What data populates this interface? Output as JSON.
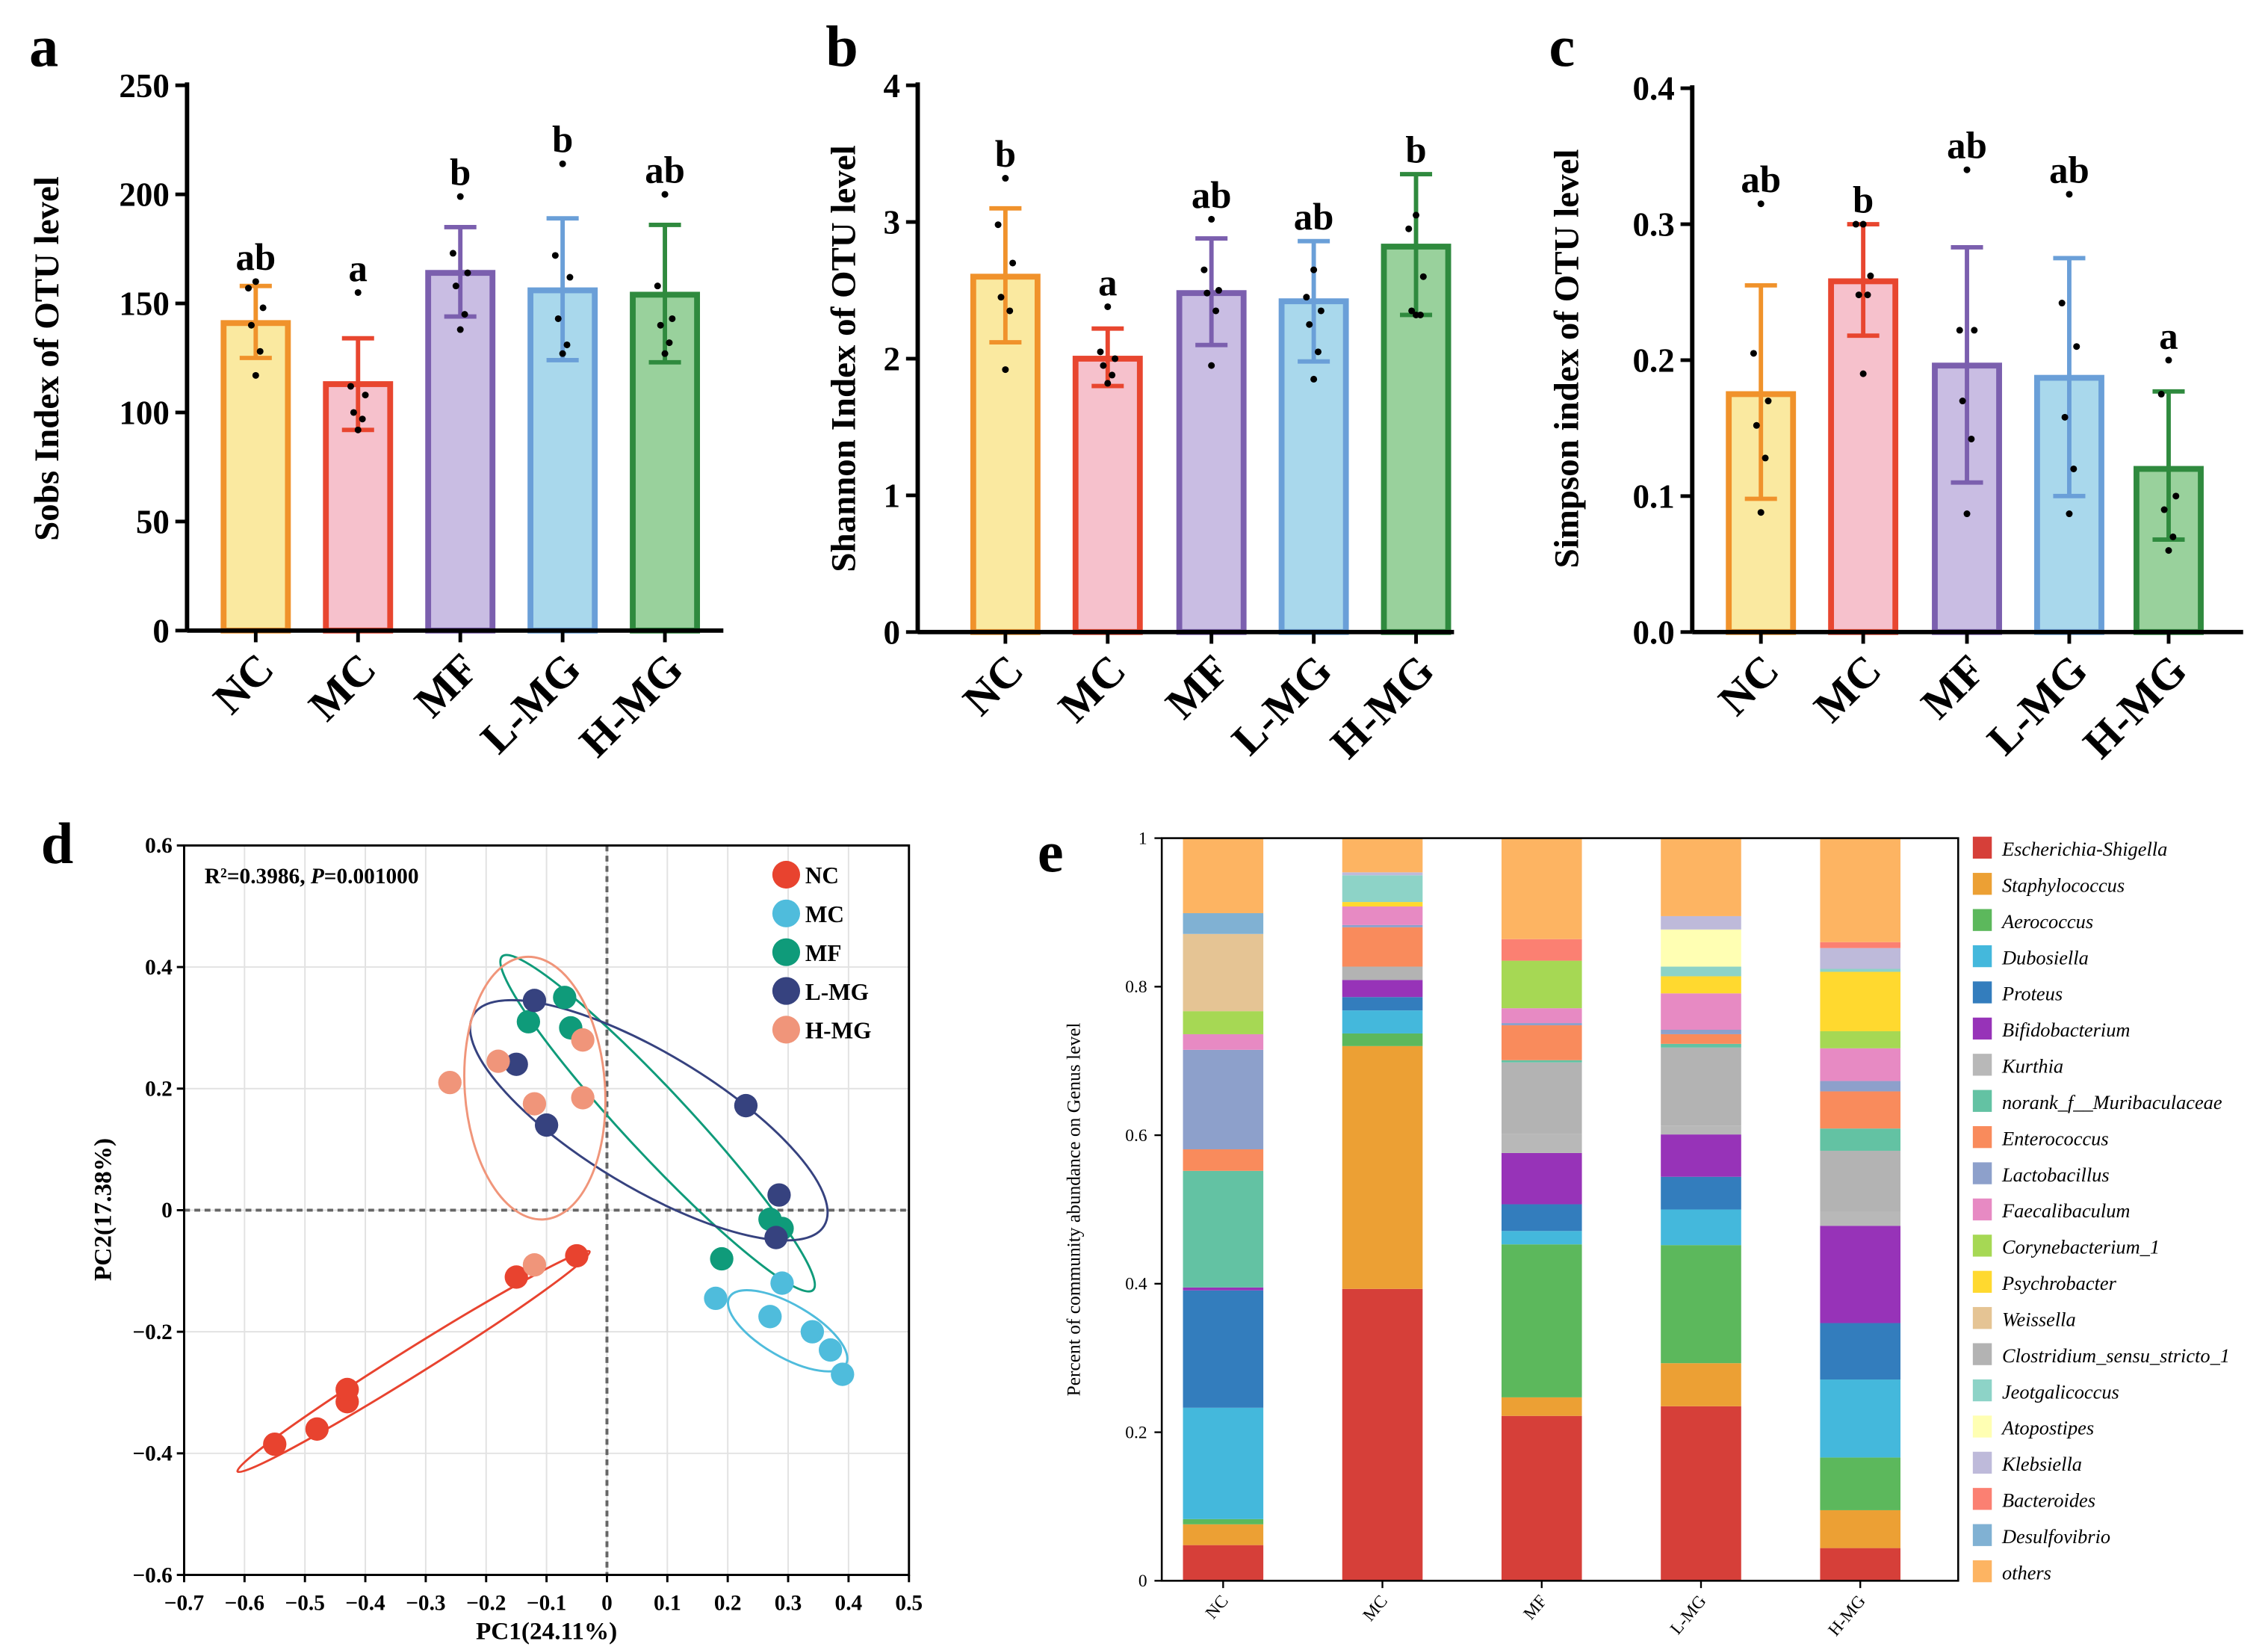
{
  "chart_data": [
    {
      "panel": "a",
      "type": "bar",
      "ylabel": "Sobs Index of OTU level",
      "ylim": [
        0,
        250
      ],
      "yticks": [
        "0",
        "50",
        "100",
        "150",
        "200",
        "250"
      ],
      "ytick_values": [
        0,
        50,
        100,
        150,
        200,
        250
      ],
      "categories": [
        "NC",
        "MC",
        "MF",
        "L-MG",
        "H-MG"
      ],
      "values": [
        141,
        113,
        164,
        156,
        154
      ],
      "error_low": [
        125,
        92,
        144,
        124,
        123
      ],
      "error_high": [
        158,
        134,
        185,
        189,
        186
      ],
      "points": [
        [
          160,
          157,
          148,
          140,
          128,
          117
        ],
        [
          155,
          112,
          108,
          100,
          97,
          92
        ],
        [
          199,
          173,
          164,
          158,
          145,
          138
        ],
        [
          214,
          172,
          162,
          143,
          131,
          127
        ],
        [
          200,
          158,
          143,
          140,
          132,
          127
        ]
      ],
      "significance": [
        "ab",
        "a",
        "b",
        "b",
        "ab"
      ]
    },
    {
      "panel": "b",
      "type": "bar",
      "ylabel": "Shannon Index of OTU level",
      "ylim": [
        0,
        4
      ],
      "yticks": [
        "0",
        "1",
        "2",
        "3",
        "4"
      ],
      "ytick_values": [
        0,
        1,
        2,
        3,
        4
      ],
      "categories": [
        "NC",
        "MC",
        "MF",
        "L-MG",
        "H-MG"
      ],
      "values": [
        2.6,
        2.0,
        2.48,
        2.42,
        2.82
      ],
      "error_low": [
        2.12,
        1.8,
        2.1,
        1.98,
        2.32
      ],
      "error_high": [
        3.1,
        2.22,
        2.88,
        2.86,
        3.35
      ],
      "points": [
        [
          3.32,
          2.98,
          2.7,
          2.45,
          2.35,
          1.92
        ],
        [
          2.38,
          2.05,
          2.0,
          1.95,
          1.88,
          1.82
        ],
        [
          3.02,
          2.65,
          2.5,
          2.48,
          2.35,
          1.95
        ],
        [
          2.65,
          2.45,
          2.35,
          2.25,
          2.05,
          1.85
        ],
        [
          3.05,
          2.95,
          2.6,
          2.35,
          2.32,
          2.32
        ]
      ],
      "significance": [
        "b",
        "a",
        "ab",
        "ab",
        "b"
      ]
    },
    {
      "panel": "c",
      "type": "bar",
      "ylabel": "Simpson index of OTU level",
      "ylim": [
        0,
        0.4
      ],
      "yticks": [
        "0.0",
        "0.1",
        "0.2",
        "0.3",
        "0.4"
      ],
      "ytick_values": [
        0,
        0.1,
        0.2,
        0.3,
        0.4
      ],
      "categories": [
        "NC",
        "MC",
        "MF",
        "L-MG",
        "H-MG"
      ],
      "values": [
        0.175,
        0.258,
        0.196,
        0.187,
        0.12
      ],
      "error_low": [
        0.098,
        0.218,
        0.11,
        0.1,
        0.068
      ],
      "error_high": [
        0.255,
        0.3,
        0.283,
        0.275,
        0.177
      ],
      "points": [
        [
          0.315,
          0.205,
          0.17,
          0.152,
          0.128,
          0.088
        ],
        [
          0.3,
          0.3,
          0.262,
          0.248,
          0.248,
          0.19
        ],
        [
          0.34,
          0.222,
          0.222,
          0.17,
          0.142,
          0.087
        ],
        [
          0.322,
          0.242,
          0.21,
          0.158,
          0.12,
          0.087
        ],
        [
          0.2,
          0.175,
          0.1,
          0.09,
          0.07,
          0.06
        ]
      ],
      "significance": [
        "ab",
        "b",
        "ab",
        "ab",
        "a"
      ]
    },
    {
      "panel": "d",
      "type": "scatter",
      "xlabel": "PC1(24.11%)",
      "ylabel": "PC2(17.38%)",
      "xlim": [
        -0.7,
        0.5
      ],
      "ylim": [
        -0.6,
        0.6
      ],
      "xticks": [
        "−0.7",
        "−0.6",
        "−0.5",
        "−0.4",
        "−0.3",
        "−0.2",
        "−0.1",
        "0",
        "0.1",
        "0.2",
        "0.3",
        "0.4",
        "0.5"
      ],
      "xtick_values": [
        -0.7,
        -0.6,
        -0.5,
        -0.4,
        -0.3,
        -0.2,
        -0.1,
        0,
        0.1,
        0.2,
        0.3,
        0.4,
        0.5
      ],
      "yticks": [
        "0.6",
        "0.4",
        "0.2",
        "0",
        "−0.2",
        "−0.4",
        "−0.6"
      ],
      "ytick_values": [
        0.6,
        0.4,
        0.2,
        0,
        -0.2,
        -0.4,
        -0.6
      ],
      "grid": true,
      "annotation": {
        "prefix": "R²=0.3986, ",
        "italic": "P",
        "suffix": "=0.001000"
      },
      "legend_position": "top-right",
      "series": [
        {
          "name": "NC",
          "color": "#e8432f",
          "points": [
            [
              -0.55,
              -0.385
            ],
            [
              -0.48,
              -0.36
            ],
            [
              -0.43,
              -0.315
            ],
            [
              -0.43,
              -0.295
            ],
            [
              -0.15,
              -0.11
            ],
            [
              -0.05,
              -0.075
            ]
          ]
        },
        {
          "name": "MC",
          "color": "#4fbcdc",
          "points": [
            [
              0.18,
              -0.145
            ],
            [
              0.27,
              -0.175
            ],
            [
              0.29,
              -0.12
            ],
            [
              0.34,
              -0.2
            ],
            [
              0.37,
              -0.23
            ],
            [
              0.39,
              -0.27
            ]
          ]
        },
        {
          "name": "MF",
          "color": "#0f9b7a",
          "points": [
            [
              -0.13,
              0.31
            ],
            [
              -0.07,
              0.35
            ],
            [
              -0.06,
              0.3
            ],
            [
              0.27,
              -0.015
            ],
            [
              0.29,
              -0.03
            ],
            [
              0.19,
              -0.08
            ]
          ]
        },
        {
          "name": "L-MG",
          "color": "#36427f",
          "points": [
            [
              -0.12,
              0.345
            ],
            [
              -0.15,
              0.24
            ],
            [
              -0.1,
              0.14
            ],
            [
              0.23,
              0.172
            ],
            [
              0.285,
              0.025
            ],
            [
              0.28,
              -0.045
            ]
          ]
        },
        {
          "name": "H-MG",
          "color": "#f0957a",
          "points": [
            [
              -0.26,
              0.21
            ],
            [
              -0.18,
              0.245
            ],
            [
              -0.04,
              0.28
            ],
            [
              -0.12,
              0.175
            ],
            [
              -0.04,
              0.185
            ],
            [
              -0.12,
              -0.09
            ]
          ]
        }
      ]
    },
    {
      "panel": "e",
      "type": "bar",
      "stacked": true,
      "ylabel": "Percent of community abundance on Genus level",
      "ylim": [
        0,
        1
      ],
      "yticks": [
        "0",
        "0.2",
        "0.4",
        "0.6",
        "0.8",
        "1"
      ],
      "ytick_values": [
        0,
        0.2,
        0.4,
        0.6,
        0.8,
        1
      ],
      "categories": [
        "NC",
        "MC",
        "MF",
        "L-MG",
        "H-MG"
      ],
      "legend_position": "right",
      "series": [
        {
          "name": "Escherichia-Shigella",
          "color": "#d63f39",
          "values": [
            0.048,
            0.393,
            0.222,
            0.235,
            0.044
          ]
        },
        {
          "name": "Staphylococcus",
          "color": "#eca034",
          "values": [
            0.028,
            0.327,
            0.025,
            0.058,
            0.051
          ]
        },
        {
          "name": "Aerococcus",
          "color": "#5cb85c",
          "values": [
            0.007,
            0.017,
            0.206,
            0.159,
            0.071
          ]
        },
        {
          "name": "Dubosiella",
          "color": "#44b8dc",
          "values": [
            0.15,
            0.031,
            0.018,
            0.048,
            0.105
          ]
        },
        {
          "name": "Proteus",
          "color": "#337dbd",
          "values": [
            0.158,
            0.018,
            0.036,
            0.044,
            0.076
          ]
        },
        {
          "name": "Bifidobacterium",
          "color": "#9733b8",
          "values": [
            0.004,
            0.023,
            0.069,
            0.057,
            0.131
          ]
        },
        {
          "name": "Kurthia",
          "color": "#b8b8b8",
          "values": [
            0,
            0,
            0.026,
            0.012,
            0.019
          ]
        },
        {
          "name": "norank_f__Muribaculaceae",
          "color": "#63c2a3",
          "values": [
            0.157,
            0,
            0.003,
            0.005,
            0.03
          ]
        },
        {
          "name": "Enterococcus",
          "color": "#f98b5c",
          "values": [
            0.029,
            0.053,
            0.047,
            0.013,
            0.05
          ]
        },
        {
          "name": "Lactobacillus",
          "color": "#8da0cb",
          "values": [
            0.134,
            0.003,
            0.003,
            0.006,
            0.014
          ]
        },
        {
          "name": "Faecalibaculum",
          "color": "#e78ac3",
          "values": [
            0.021,
            0.025,
            0.02,
            0.049,
            0.044
          ]
        },
        {
          "name": "Corynebacterium_1",
          "color": "#a6d854",
          "values": [
            0.031,
            0,
            0.064,
            0,
            0.023
          ]
        },
        {
          "name": "Psychrobacter",
          "color": "#ffd92f",
          "values": [
            0,
            0.006,
            0,
            0.023,
            0.08
          ]
        },
        {
          "name": "Weissella",
          "color": "#e5c494",
          "values": [
            0.104,
            0,
            0,
            0,
            0
          ]
        },
        {
          "name": "Clostridium_sensu_stricto_1",
          "color": "#b3b3b3",
          "values": [
            0,
            0.018,
            0.096,
            0.105,
            0.082
          ]
        },
        {
          "name": "Jeotgalicoccus",
          "color": "#8dd3c7",
          "values": [
            0,
            0.036,
            0,
            0.013,
            0.004
          ]
        },
        {
          "name": "Atopostipes",
          "color": "#ffffb3",
          "values": [
            0,
            0,
            0,
            0.05,
            0
          ]
        },
        {
          "name": "Klebsiella",
          "color": "#bebada",
          "values": [
            0,
            0.004,
            0,
            0.018,
            0.028
          ]
        },
        {
          "name": "Bacteroides",
          "color": "#fb8072",
          "values": [
            0,
            0,
            0.029,
            0,
            0.008
          ]
        },
        {
          "name": "Desulfovibrio",
          "color": "#80b1d3",
          "values": [
            0.028,
            0,
            0,
            0,
            0
          ]
        },
        {
          "name": "others",
          "color": "#fdb462",
          "values": [
            0.101,
            0.046,
            0.136,
            0.105,
            0.14
          ]
        }
      ]
    }
  ],
  "group_colors": {
    "NC": {
      "fill": "#fae9a0",
      "stroke": "#f0922b"
    },
    "MC": {
      "fill": "#f6c1cc",
      "stroke": "#e8462f"
    },
    "MF": {
      "fill": "#c9bde3",
      "stroke": "#7b5fae"
    },
    "L-MG": {
      "fill": "#a9d8ec",
      "stroke": "#6a9fd8"
    },
    "H-MG": {
      "fill": "#99d19c",
      "stroke": "#2f8a3e"
    }
  }
}
